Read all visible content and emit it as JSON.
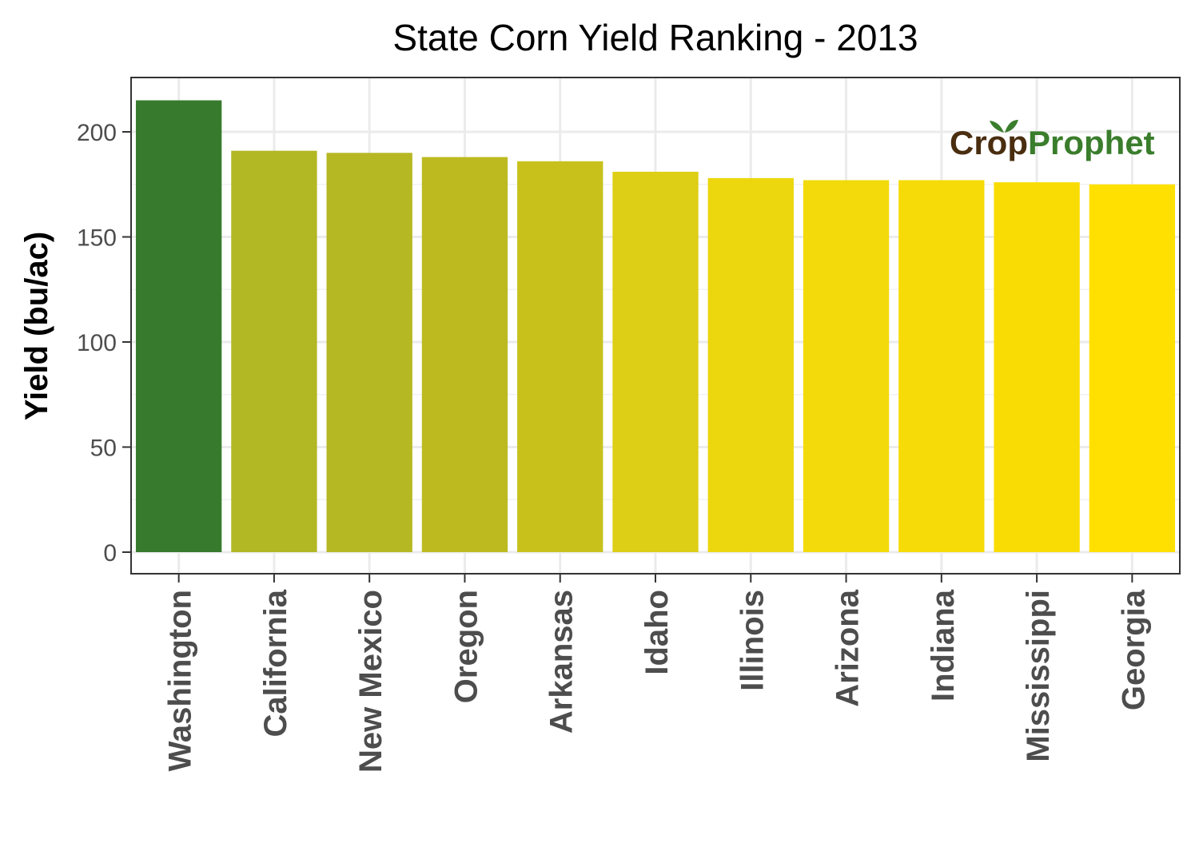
{
  "chart_data": {
    "type": "bar",
    "title": "State Corn Yield Ranking - 2013",
    "xlabel": "",
    "ylabel": "Yield (bu/ac)",
    "ylim": [
      0,
      220
    ],
    "yticks": [
      0,
      50,
      100,
      150,
      200
    ],
    "grid": true,
    "legend": "none",
    "categories": [
      "Washington",
      "California",
      "New Mexico",
      "Oregon",
      "Arkansas",
      "Idaho",
      "Illinois",
      "Arizona",
      "Indiana",
      "Mississippi",
      "Georgia"
    ],
    "values": [
      215,
      191,
      190,
      188,
      186,
      181,
      178,
      177,
      177,
      176,
      175
    ],
    "bar_colors": [
      "#387A2D",
      "#B2B724",
      "#B5B822",
      "#BDBA20",
      "#C8C11C",
      "#DDCE16",
      "#ECD70E",
      "#F2DA0B",
      "#F6DB08",
      "#F9DC04",
      "#FFE000"
    ]
  },
  "logo": {
    "text_crop": "Crop",
    "text_prophet": "Prophet"
  }
}
